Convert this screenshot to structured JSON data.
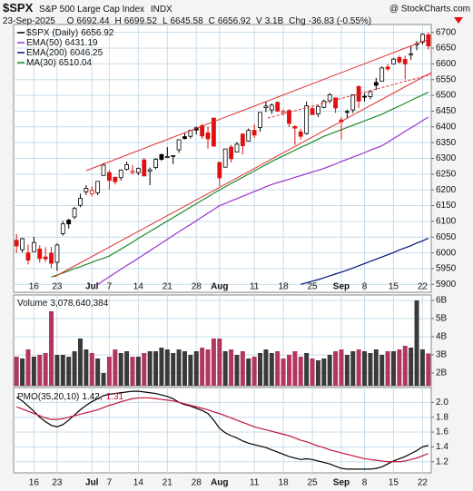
{
  "header": {
    "symbol": "$SPX",
    "name": "S&P 500 Large Cap Index",
    "exchange": "INDX",
    "source": "@ StockCharts.com",
    "date": "23-Sep-2025",
    "quote_labels": [
      "O",
      "H",
      "L",
      "C",
      "V",
      "Chg"
    ],
    "volume": "3.1B",
    "change": "-36.83 (-0.55%)"
  },
  "chart_data": [
    {
      "type": "candlestick",
      "name": "$SPX (Daily)",
      "up_color": "#000000",
      "down_color": "#e01010",
      "categories": [
        null,
        null,
        null,
        "16",
        null,
        null,
        null,
        "23",
        null,
        null,
        null,
        null,
        null,
        "Jul",
        null,
        null,
        "7",
        null,
        null,
        null,
        null,
        "14",
        null,
        null,
        null,
        null,
        "21",
        null,
        null,
        null,
        null,
        "28",
        null,
        null,
        null,
        "Aug",
        null,
        null,
        null,
        null,
        null,
        "11",
        null,
        null,
        null,
        null,
        "18",
        null,
        null,
        null,
        null,
        "25",
        null,
        null,
        null,
        null,
        "Sep",
        null,
        null,
        null,
        "8",
        null,
        null,
        null,
        null,
        "15",
        null,
        null,
        null,
        null,
        "22",
        null
      ],
      "ohlc": [
        [
          6040,
          6060,
          6000,
          6022
        ],
        [
          6010,
          6048,
          6001,
          6045
        ],
        [
          6000,
          6026,
          5963,
          5977
        ],
        [
          6004,
          6051,
          6004,
          6033
        ],
        [
          6012,
          6024,
          5969,
          5982
        ],
        [
          5987,
          6018,
          5971,
          5981
        ],
        [
          5999,
          6019,
          5952,
          5967
        ],
        [
          5970,
          6030,
          5943,
          6025
        ],
        [
          6061,
          6101,
          6055,
          6092
        ],
        [
          6104,
          6108,
          6077,
          6092
        ],
        [
          6114,
          6146,
          6107,
          6141
        ],
        [
          6151,
          6188,
          6145,
          6173
        ],
        [
          6194,
          6215,
          6184,
          6205
        ],
        [
          6188,
          6211,
          6179,
          6198
        ],
        [
          6191,
          6227,
          6183,
          6227
        ],
        [
          6246,
          6285,
          6246,
          6279
        ],
        [
          6255,
          6263,
          6201,
          6230
        ],
        [
          6240,
          6242,
          6217,
          6226
        ],
        [
          6239,
          6265,
          6230,
          6263
        ],
        [
          6265,
          6290,
          6261,
          6280
        ],
        [
          6255,
          6279,
          6249,
          6259
        ],
        [
          6255,
          6271,
          6247,
          6268
        ],
        [
          6295,
          6302,
          6244,
          6244
        ],
        [
          6259,
          6271,
          6215,
          6264
        ],
        [
          6271,
          6301,
          6265,
          6297
        ],
        [
          6312,
          6315,
          6292,
          6297
        ],
        [
          6304,
          6336,
          6303,
          6306
        ],
        [
          6307,
          6310,
          6282,
          6309
        ],
        [
          6327,
          6360,
          6318,
          6359
        ],
        [
          6369,
          6381,
          6360,
          6363
        ],
        [
          6370,
          6390,
          6363,
          6389
        ],
        [
          6397,
          6401,
          6376,
          6390
        ],
        [
          6404,
          6410,
          6362,
          6371
        ],
        [
          6381,
          6401,
          6331,
          6362
        ],
        [
          6428,
          6428,
          6337,
          6339
        ],
        [
          6287,
          6289,
          6212,
          6238
        ],
        [
          6272,
          6330,
          6271,
          6330
        ],
        [
          6336,
          6343,
          6287,
          6299
        ],
        [
          6320,
          6352,
          6319,
          6345
        ],
        [
          6377,
          6380,
          6313,
          6340
        ],
        [
          6355,
          6395,
          6354,
          6389
        ],
        [
          6389,
          6409,
          6365,
          6374
        ],
        [
          6398,
          6446,
          6385,
          6446
        ],
        [
          6461,
          6481,
          6447,
          6466
        ],
        [
          6454,
          6474,
          6441,
          6469
        ],
        [
          6478,
          6481,
          6447,
          6450
        ],
        [
          6445,
          6456,
          6436,
          6449
        ],
        [
          6452,
          6456,
          6399,
          6411
        ],
        [
          6401,
          6405,
          6343,
          6396
        ],
        [
          6384,
          6394,
          6360,
          6370
        ],
        [
          6379,
          6481,
          6375,
          6467
        ],
        [
          6458,
          6466,
          6438,
          6439
        ],
        [
          6441,
          6468,
          6431,
          6465
        ],
        [
          6462,
          6487,
          6459,
          6481
        ],
        [
          6483,
          6508,
          6475,
          6502
        ],
        [
          6492,
          6492,
          6444,
          6460
        ],
        [
          6422,
          6432,
          6360,
          6416
        ],
        [
          6449,
          6455,
          6428,
          6448
        ],
        [
          6454,
          6502,
          6444,
          6502
        ],
        [
          6528,
          6532,
          6460,
          6482
        ],
        [
          6497,
          6507,
          6481,
          6495
        ],
        [
          6496,
          6514,
          6488,
          6512
        ],
        [
          6541,
          6555,
          6517,
          6532
        ],
        [
          6545,
          6592,
          6545,
          6587
        ],
        [
          6590,
          6600,
          6577,
          6584
        ],
        [
          6600,
          6619,
          6598,
          6615
        ],
        [
          6620,
          6626,
          6601,
          6606
        ],
        [
          6614,
          6626,
          6551,
          6600
        ],
        [
          6629,
          6656,
          6613,
          6632
        ],
        [
          6661,
          6672,
          6643,
          6664
        ],
        [
          6669,
          6697,
          6662,
          6693.75
        ],
        [
          6692.44,
          6699.52,
          6645.58,
          6656.92
        ]
      ],
      "series": [
        {
          "name": "EMA(50)",
          "color": "#9933cc",
          "values": [
            null,
            null,
            null,
            null,
            null,
            null,
            null,
            null,
            null,
            null,
            null,
            null,
            null,
            null,
            5900,
            5912,
            5924,
            5936,
            5948,
            5960,
            5971,
            5983,
            5995,
            6007,
            6019,
            6031,
            6043,
            6055,
            6067,
            6079,
            6090,
            6102,
            6114,
            6126,
            6138,
            6150,
            6157,
            6165,
            6172,
            6180,
            6187,
            6195,
            6202,
            6210,
            6217,
            6223,
            6228,
            6234,
            6240,
            6245,
            6251,
            6257,
            6262,
            6268,
            6275,
            6282,
            6290,
            6297,
            6304,
            6311,
            6318,
            6326,
            6333,
            6340,
            6351,
            6363,
            6374,
            6386,
            6397,
            6408,
            6420,
            6431.19
          ]
        },
        {
          "name": "EMA(200)",
          "color": "#00107a",
          "values": [
            null,
            null,
            null,
            null,
            null,
            null,
            null,
            null,
            null,
            null,
            null,
            null,
            null,
            null,
            null,
            null,
            null,
            null,
            null,
            null,
            null,
            null,
            null,
            null,
            null,
            null,
            null,
            null,
            null,
            null,
            null,
            null,
            null,
            null,
            null,
            null,
            null,
            null,
            null,
            null,
            null,
            null,
            null,
            null,
            null,
            null,
            null,
            null,
            null,
            5900,
            5905,
            5910,
            5915,
            5921,
            5927,
            5933,
            5939,
            5945,
            5952,
            5959,
            5966,
            5973,
            5980,
            5987,
            5994,
            6001,
            6009,
            6016,
            6023,
            6031,
            6038,
            6046.25
          ]
        },
        {
          "name": "MA(30)",
          "color": "#1f8a2a",
          "values": [
            null,
            null,
            null,
            null,
            null,
            null,
            5923,
            5930,
            5936,
            5943,
            5950,
            5956,
            5963,
            5970,
            5977,
            5983,
            5990,
            6001,
            6012,
            6023,
            6034,
            6046,
            6057,
            6068,
            6079,
            6090,
            6101,
            6112,
            6123,
            6134,
            6145,
            6156,
            6167,
            6178,
            6189,
            6200,
            6210,
            6220,
            6230,
            6240,
            6250,
            6260,
            6270,
            6280,
            6290,
            6299,
            6308,
            6317,
            6326,
            6335,
            6343,
            6352,
            6361,
            6370,
            6377,
            6384,
            6391,
            6398,
            6405,
            6412,
            6419,
            6426,
            6433,
            6440,
            6449,
            6458,
            6466,
            6475,
            6484,
            6493,
            6501,
            6510.04
          ]
        }
      ],
      "ylim": [
        5875,
        6725
      ],
      "yticks": [
        5900,
        5950,
        6000,
        6050,
        6100,
        6150,
        6200,
        6250,
        6300,
        6350,
        6400,
        6450,
        6500,
        6550,
        6600,
        6650,
        6700
      ],
      "grid": true
    },
    {
      "type": "bar",
      "name": "Volume",
      "up_color": "#3a3a3a",
      "down_color": "#b2365f",
      "values": [
        2900000000,
        2800000000,
        3300000000,
        2900000000,
        3000000000,
        3100000000,
        5400000000,
        3000000000,
        3000000000,
        2900000000,
        3200000000,
        3900000000,
        3300000000,
        3100000000,
        2800000000,
        2000000000,
        2900000000,
        3300000000,
        3100000000,
        3200000000,
        2900000000,
        2900000000,
        3100000000,
        3200000000,
        3200000000,
        3400000000,
        3300000000,
        3100000000,
        3300000000,
        3200000000,
        3000000000,
        3200000000,
        3400000000,
        3300000000,
        3900000000,
        3900000000,
        3200000000,
        3300000000,
        3000000000,
        3200000000,
        2800000000,
        2900000000,
        3100000000,
        3300000000,
        3100000000,
        3200000000,
        2800000000,
        3000000000,
        3200000000,
        2900000000,
        3100000000,
        2800000000,
        2700000000,
        2800000000,
        3000000000,
        3200000000,
        3300000000,
        3000000000,
        3200000000,
        3300000000,
        3200000000,
        3100000000,
        3300000000,
        3000000000,
        3200000000,
        3200000000,
        3300000000,
        3500000000,
        3400000000,
        6000000000,
        3300000000,
        3078640384
      ],
      "value_labels": [
        null,
        null,
        null,
        null,
        null,
        null,
        null,
        null,
        null,
        null,
        null,
        null,
        null,
        null,
        null,
        null,
        null,
        null,
        null,
        null,
        null,
        null,
        null,
        null,
        null,
        null,
        null,
        null,
        null,
        null,
        null,
        null,
        null,
        null,
        null,
        null,
        null,
        null,
        null,
        null,
        null,
        null,
        null,
        null,
        null,
        null,
        null,
        null,
        null,
        null,
        null,
        null,
        null,
        null,
        null,
        null,
        null,
        null,
        null,
        null,
        null,
        null,
        null,
        null,
        null,
        null,
        null,
        null,
        null,
        null,
        null,
        "3,078,640,384"
      ],
      "ylim": [
        1300000000,
        6300000000
      ],
      "yticks": [
        {
          "value": 2000000000,
          "label": "2B"
        },
        {
          "value": 3000000000,
          "label": "3B"
        },
        {
          "value": 4000000000,
          "label": "4B"
        },
        {
          "value": 5000000000,
          "label": "5B"
        },
        {
          "value": 6000000000,
          "label": "6B"
        }
      ],
      "grid": true
    },
    {
      "type": "line",
      "series": [
        {
          "name": "PMO(35,20,10)",
          "color": "#000000",
          "values": [
            2.07,
            2.02,
            1.95,
            1.88,
            1.8,
            1.74,
            1.69,
            1.67,
            1.7,
            1.76,
            1.83,
            1.9,
            1.96,
            2.01,
            2.05,
            2.09,
            2.11,
            2.12,
            2.13,
            2.14,
            2.15,
            2.15,
            2.14,
            2.13,
            2.12,
            2.1,
            2.08,
            2.05,
            2.0,
            1.97,
            1.95,
            1.92,
            1.89,
            1.85,
            1.76,
            1.65,
            1.59,
            1.55,
            1.52,
            1.48,
            1.45,
            1.43,
            1.41,
            1.39,
            1.36,
            1.33,
            1.3,
            1.27,
            1.25,
            1.23,
            1.24,
            1.23,
            1.21,
            1.19,
            1.17,
            1.14,
            1.11,
            1.1,
            1.1,
            1.1,
            1.1,
            1.1,
            1.11,
            1.13,
            1.17,
            1.21,
            1.24,
            1.27,
            1.31,
            1.35,
            1.4,
            1.42
          ]
        },
        {
          "color": "#c0143c",
          "values": [
            1.94,
            1.91,
            1.88,
            1.85,
            1.82,
            1.79,
            1.77,
            1.77,
            1.78,
            1.8,
            1.82,
            1.84,
            1.86,
            1.88,
            1.9,
            1.93,
            1.96,
            1.98,
            2.01,
            2.03,
            2.05,
            2.06,
            2.06,
            2.06,
            2.05,
            2.04,
            2.03,
            2.02,
            2.0,
            1.98,
            1.96,
            1.94,
            1.92,
            1.9,
            1.87,
            1.85,
            1.82,
            1.79,
            1.76,
            1.73,
            1.7,
            1.67,
            1.65,
            1.63,
            1.61,
            1.59,
            1.57,
            1.55,
            1.52,
            1.49,
            1.47,
            1.44,
            1.41,
            1.39,
            1.36,
            1.34,
            1.32,
            1.3,
            1.28,
            1.26,
            1.24,
            1.23,
            1.22,
            1.21,
            1.2,
            1.2,
            1.2,
            1.21,
            1.23,
            1.25,
            1.28,
            1.31
          ]
        }
      ],
      "ylim": [
        1.05,
        2.2
      ],
      "yticks": [
        1.2,
        1.4,
        1.6,
        1.8,
        {
          "value": 2,
          "label": "2.0"
        }
      ],
      "grid": true
    }
  ]
}
